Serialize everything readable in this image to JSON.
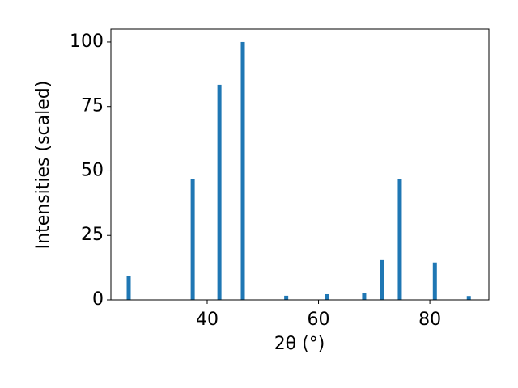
{
  "chart_data": {
    "type": "bar",
    "x": [
      25.9,
      37.4,
      42.2,
      46.4,
      54.2,
      61.5,
      68.2,
      71.4,
      74.6,
      80.9,
      87.0
    ],
    "values": [
      9.1,
      47,
      83.4,
      100,
      1.6,
      2.2,
      2.8,
      15.4,
      46.7,
      14.5,
      1.5
    ],
    "color": "#1f77b4",
    "xlabel": "2θ (°)",
    "ylabel": "Intensities (scaled)",
    "xlim": [
      22.7,
      90.6
    ],
    "xticks": [
      40,
      60,
      80
    ],
    "ylim": [
      0,
      105
    ],
    "yticks": [
      0,
      25,
      50,
      75,
      100
    ],
    "grid": false
  }
}
